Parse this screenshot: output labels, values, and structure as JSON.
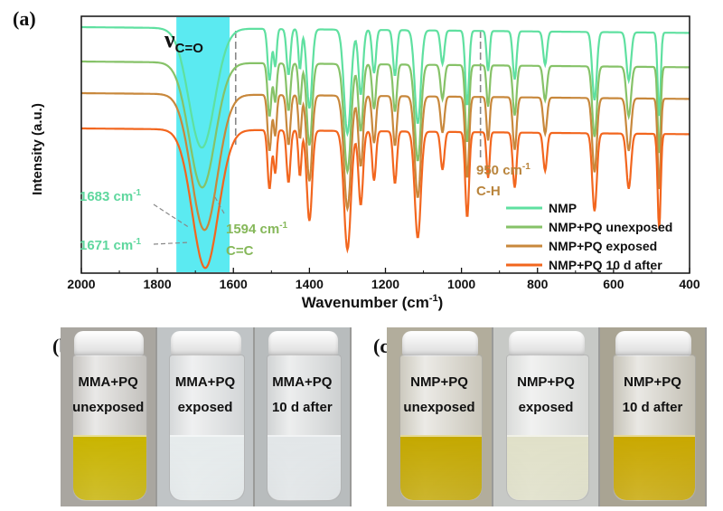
{
  "panels": {
    "a": "(a)",
    "b": "(b)",
    "c": "(c)"
  },
  "chart_data": {
    "type": "line",
    "xlabel_main": "Wavenumber (cm",
    "xlabel_sup": "-1",
    "xlabel_end": ")",
    "ylabel": "Intensity (a.u.)",
    "xlim": [
      2000,
      400
    ],
    "x_reversed": true,
    "xticks": [
      "2000",
      "1800",
      "1600",
      "1400",
      "1200",
      "1000",
      "800",
      "600",
      "400"
    ],
    "xtick_values": [
      2000,
      1800,
      1600,
      1400,
      1200,
      1000,
      800,
      600,
      400
    ],
    "legend_position": "bottom-right",
    "series": [
      {
        "name": "NMP",
        "color": "#5fe0a0",
        "offset": 3.0
      },
      {
        "name": "NMP+PQ unexposed",
        "color": "#86c268",
        "offset": 2.0
      },
      {
        "name": "NMP+PQ exposed",
        "color": "#c8883c",
        "offset": 1.0
      },
      {
        "name": "NMP+PQ 10 d after",
        "color": "#f2661e",
        "offset": 0.0
      }
    ],
    "highlight_region": {
      "from": 1750,
      "to": 1610,
      "color": "#3ee6ee"
    },
    "reference_lines": [
      1594,
      950
    ],
    "annotations": {
      "nu_main": "ν",
      "nu_sub": "C=O",
      "peak_1683": "1683 cm",
      "peak_1671": "1671 cm",
      "peak_1594": "1594 cm",
      "peak_950": "950 cm",
      "sup": "-1",
      "cc": "C=C",
      "ch": "C-H"
    }
  },
  "photos": {
    "b": [
      {
        "line1": "MMA+PQ",
        "line2": "unexposed",
        "liquid_color": "#c9b400"
      },
      {
        "line1": "MMA+PQ",
        "line2": "exposed",
        "liquid_color": "#e6ebec"
      },
      {
        "line1": "MMA+PQ",
        "line2": "10 d after",
        "liquid_color": "#e2e6e8"
      }
    ],
    "c": [
      {
        "line1": "NMP+PQ",
        "line2": "unexposed",
        "liquid_color": "#c4a800"
      },
      {
        "line1": "NMP+PQ",
        "line2": "exposed",
        "liquid_color": "#e0e0c8"
      },
      {
        "line1": "NMP+PQ",
        "line2": "10 d after",
        "liquid_color": "#c9a800"
      }
    ]
  }
}
